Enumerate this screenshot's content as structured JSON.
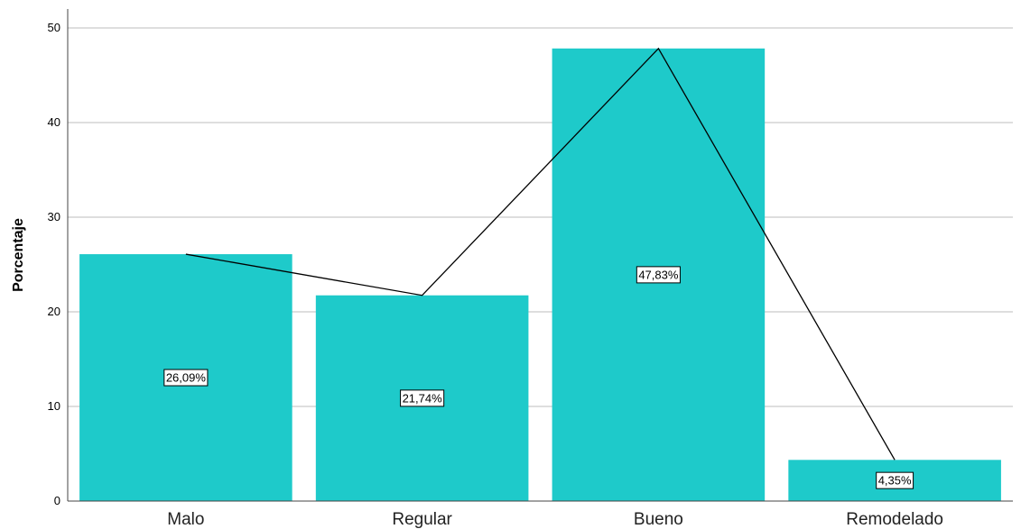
{
  "chart_data": {
    "type": "bar",
    "ylabel": "Porcentaje",
    "xlabel": "",
    "categories": [
      "Malo",
      "Regular",
      "Bueno",
      "Remodelado"
    ],
    "values": [
      26.09,
      21.74,
      47.83,
      4.35
    ],
    "data_labels": [
      "26,09%",
      "21,74%",
      "47,83%",
      "4,35%"
    ],
    "line_overlay": true,
    "ylim": [
      0,
      52
    ],
    "yticks": [
      0,
      10,
      20,
      30,
      40,
      50
    ],
    "ytick_labels": [
      "0",
      "10",
      "20",
      "30",
      "40",
      "50"
    ],
    "grid": true,
    "colors": {
      "bar": "#1ECACA",
      "line": "#000000",
      "grid": "#bdbdbd",
      "axis": "#444444"
    }
  }
}
